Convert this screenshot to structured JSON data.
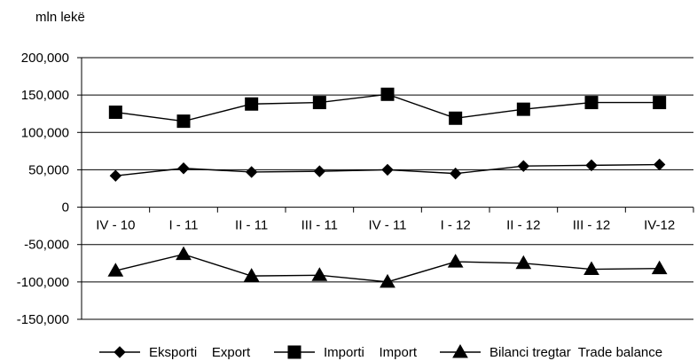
{
  "chart_data": {
    "type": "line",
    "unit_label": "mln lekë",
    "categories": [
      "IV - 10",
      "I - 11",
      "II - 11",
      "III - 11",
      "IV - 11",
      "I - 12",
      "II - 12",
      "III - 12",
      "IV-12"
    ],
    "ylim": [
      -150000,
      200000
    ],
    "yticks": [
      200000,
      150000,
      100000,
      50000,
      0,
      -50000,
      -100000,
      -150000
    ],
    "ytick_labels": [
      "200,000",
      "150,000",
      "100,000",
      "50,000",
      "0",
      "-50,000",
      "-100,000",
      "-150,000"
    ],
    "grid": true,
    "legend_position": "bottom",
    "series": [
      {
        "name": "Eksporti    Export",
        "marker": "diamond",
        "color": "#000000",
        "values": [
          42000,
          52000,
          47000,
          48000,
          50000,
          45000,
          55000,
          56000,
          57000
        ]
      },
      {
        "name": "Importi    Import",
        "marker": "square",
        "color": "#000000",
        "values": [
          127000,
          115000,
          138000,
          140000,
          151000,
          119000,
          131000,
          140000,
          140000
        ]
      },
      {
        "name": "Bilanci tregtar  Trade balance",
        "marker": "triangle",
        "color": "#000000",
        "values": [
          -85000,
          -63000,
          -92000,
          -91000,
          -100000,
          -73000,
          -75000,
          -83000,
          -82000
        ]
      }
    ]
  }
}
